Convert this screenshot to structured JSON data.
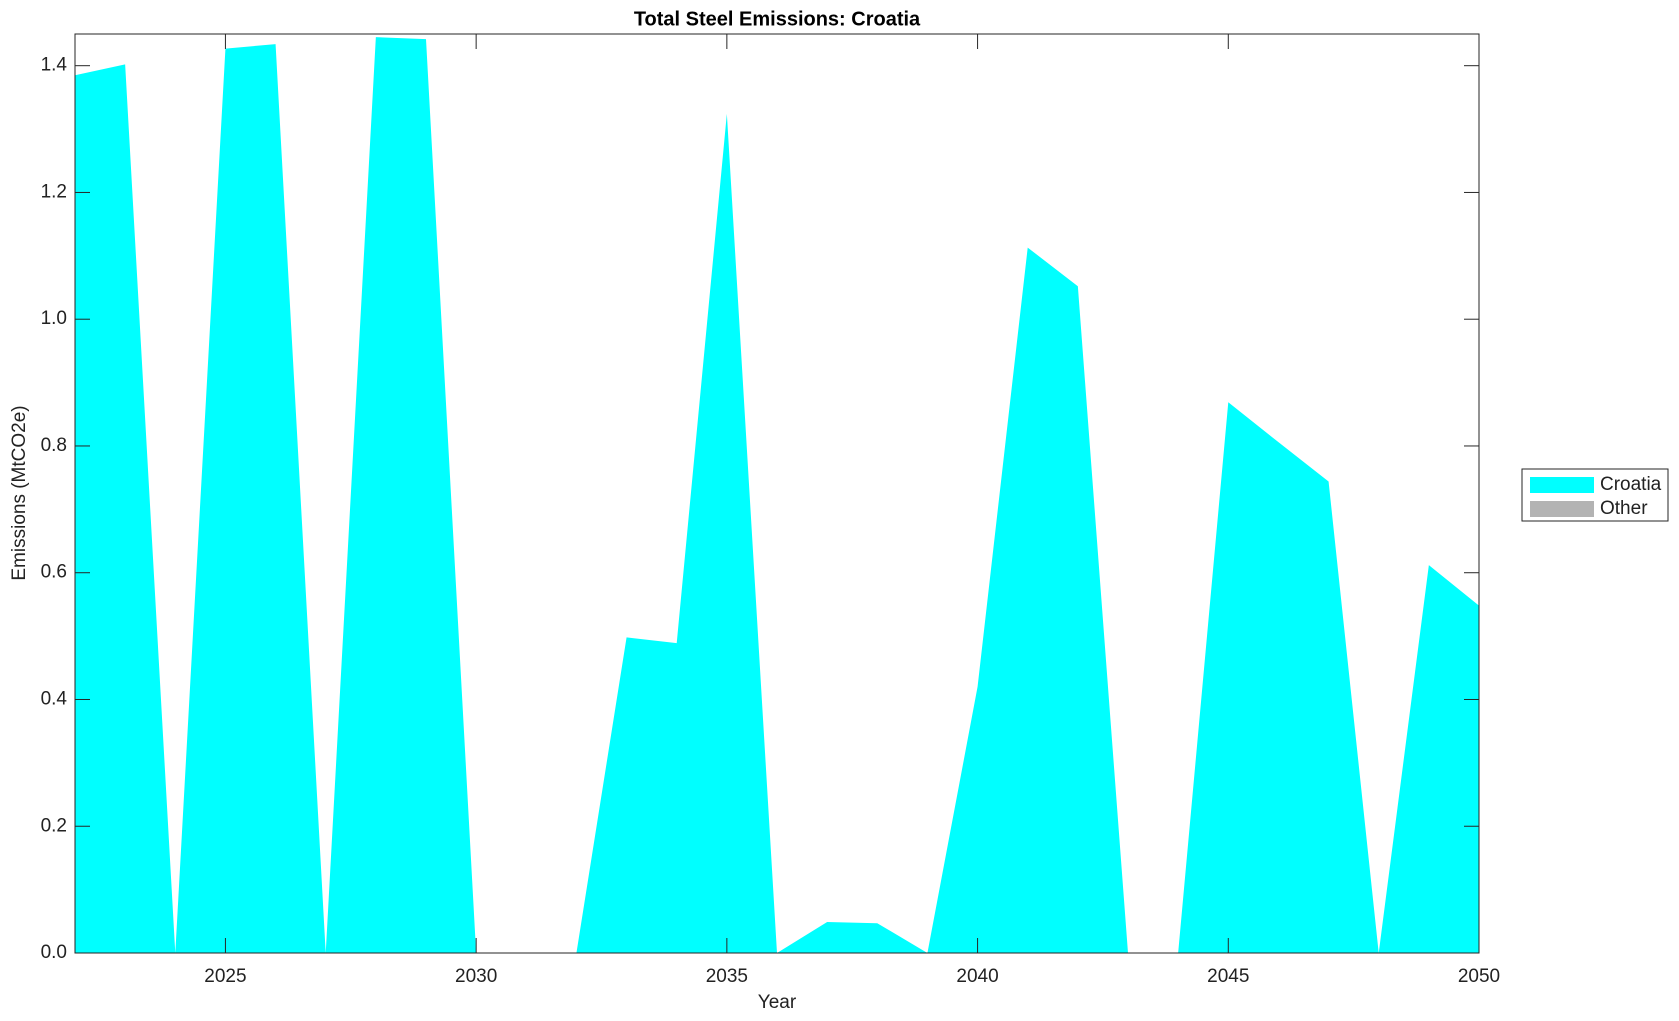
{
  "chart_data": {
    "type": "area",
    "stacked": true,
    "title": "Total Steel Emissions: Croatia",
    "xlabel": "Year",
    "ylabel": "Emissions (MtCO2e)",
    "x": [
      2022,
      2023,
      2024,
      2025,
      2026,
      2027,
      2028,
      2029,
      2030,
      2031,
      2032,
      2033,
      2034,
      2035,
      2036,
      2037,
      2038,
      2039,
      2040,
      2041,
      2042,
      2043,
      2044,
      2045,
      2046,
      2047,
      2048,
      2049,
      2050
    ],
    "series": [
      {
        "name": "Croatia",
        "color": "#00ffff",
        "values": [
          1.385,
          1.402,
          0,
          1.427,
          1.434,
          0,
          1.445,
          1.442,
          0,
          0,
          0,
          0.498,
          0.489,
          1.324,
          0,
          0.049,
          0.047,
          0,
          0.42,
          1.113,
          1.052,
          0,
          0,
          0.869,
          0.806,
          0.744,
          0,
          0.612,
          0.548
        ]
      },
      {
        "name": "Other",
        "color": "#b3b3b3",
        "values": [
          0,
          0,
          0,
          0,
          0,
          0,
          0,
          0,
          0,
          0,
          0,
          0,
          0,
          0,
          0,
          0,
          0,
          0,
          0,
          0,
          0,
          0,
          0,
          0,
          0,
          0,
          0,
          0,
          0
        ]
      }
    ],
    "xlim": [
      2022,
      2050
    ],
    "xticks": [
      2025,
      2030,
      2035,
      2040,
      2045,
      2050
    ],
    "ylim": [
      0,
      1.45
    ],
    "yticks": [
      {
        "value": 0,
        "label": "0.0"
      },
      0.2,
      0.4,
      0.6,
      0.8,
      {
        "value": 1,
        "label": "1.0"
      },
      1.2,
      1.4
    ],
    "grid": false,
    "legend": "east-outside"
  }
}
